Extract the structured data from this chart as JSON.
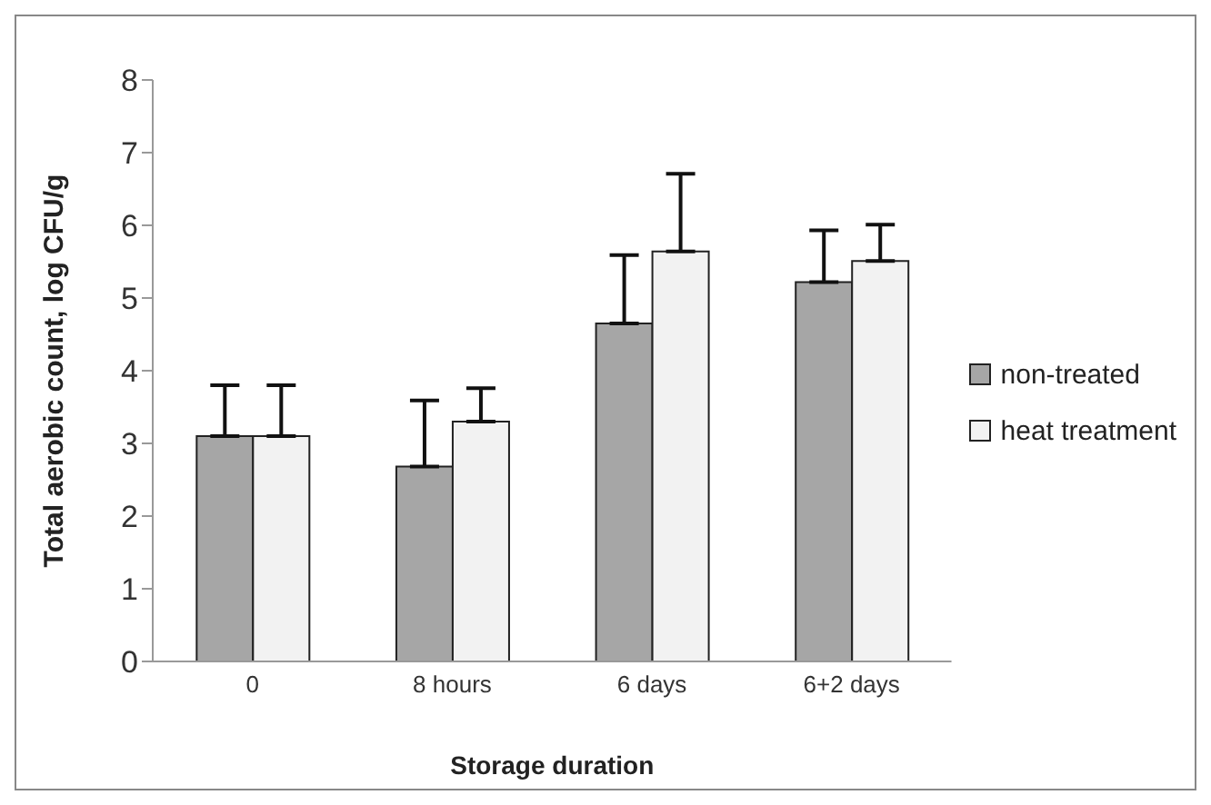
{
  "chart_data": {
    "type": "bar",
    "xlabel": "Storage duration",
    "ylabel": "Total aerobic count, log CFU/g",
    "categories": [
      "0",
      "8 hours",
      "6 days",
      "6+2 days"
    ],
    "series": [
      {
        "name": "non-treated",
        "color": "#a6a6a6",
        "values": [
          3.1,
          2.68,
          4.65,
          5.22
        ],
        "errors": [
          [
            3.1,
            3.8
          ],
          [
            2.68,
            3.59
          ],
          [
            4.65,
            5.59
          ],
          [
            5.22,
            5.93
          ]
        ]
      },
      {
        "name": "heat treatment",
        "color": "#f2f2f2",
        "values": [
          3.1,
          3.3,
          5.64,
          5.51
        ],
        "errors": [
          [
            3.1,
            3.8
          ],
          [
            3.3,
            3.76
          ],
          [
            5.64,
            6.71
          ],
          [
            5.51,
            6.01
          ]
        ]
      }
    ],
    "ylim": [
      0,
      8
    ],
    "yticks": [
      0,
      1,
      2,
      3,
      4,
      5,
      6,
      7,
      8
    ],
    "grid": false,
    "legend": "right"
  }
}
